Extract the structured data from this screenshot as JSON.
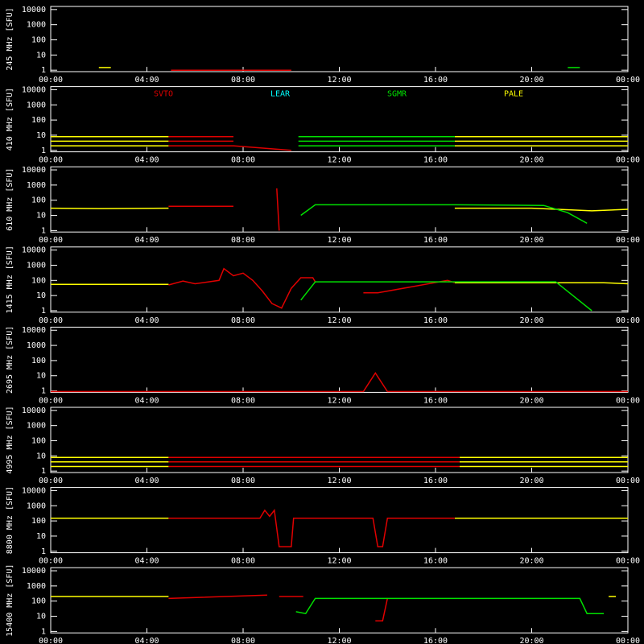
{
  "chart_data": [
    {
      "type": "line",
      "y_label": "245 MHz [SFU]",
      "xlim": [
        0,
        24
      ],
      "ylim": [
        0.8,
        16000
      ],
      "log_scale": true,
      "xticks": [
        {
          "value": 0,
          "label": "00:00"
        },
        {
          "value": 4,
          "label": "04:00"
        },
        {
          "value": 8,
          "label": "08:00"
        },
        {
          "value": 12,
          "label": "12:00"
        },
        {
          "value": 16,
          "label": "16:00"
        },
        {
          "value": 20,
          "label": "20:00"
        },
        {
          "value": 24,
          "label": "00:00"
        }
      ],
      "yticks": [
        1,
        10,
        100,
        1000,
        10000
      ],
      "series": [
        {
          "color": "#ffff00",
          "x": [
            2,
            2.5
          ],
          "values": [
            1.5,
            1.5
          ]
        },
        {
          "color": "#e00000",
          "x": [
            5,
            10
          ],
          "values": [
            1,
            1
          ]
        },
        {
          "color": "#00e000",
          "x": [
            21.5,
            22
          ],
          "values": [
            1.5,
            1.5
          ]
        }
      ]
    },
    {
      "type": "line",
      "y_label": "410 MHz [SFU]",
      "xlim": [
        0,
        24
      ],
      "ylim": [
        0.8,
        16000
      ],
      "log_scale": true,
      "xticks": [
        {
          "value": 0,
          "label": "00:00"
        },
        {
          "value": 4,
          "label": "04:00"
        },
        {
          "value": 8,
          "label": "08:00"
        },
        {
          "value": 12,
          "label": "12:00"
        },
        {
          "value": 16,
          "label": "16:00"
        },
        {
          "value": 20,
          "label": "20:00"
        },
        {
          "value": 24,
          "label": "00:00"
        }
      ],
      "yticks": [
        1,
        10,
        100,
        1000,
        10000
      ],
      "legend": [
        {
          "name": "SVTO",
          "color": "#e00000"
        },
        {
          "name": "LEAR",
          "color": "#00ffff"
        },
        {
          "name": "SGMR",
          "color": "#00e000"
        },
        {
          "name": "PALE",
          "color": "#ffff00"
        }
      ],
      "series": [
        {
          "color": "#ffff00",
          "x": [
            0,
            4.9,
            10,
            16.8,
            24
          ],
          "values": [
            8,
            8,
            null,
            8,
            8
          ]
        },
        {
          "color": "#ffff00",
          "x": [
            0,
            4.9,
            10,
            16.8,
            24
          ],
          "values": [
            4,
            4,
            null,
            4,
            4
          ]
        },
        {
          "color": "#ffff00",
          "x": [
            0,
            4.9,
            10,
            16.8,
            24
          ],
          "values": [
            2,
            2,
            null,
            2,
            2
          ]
        },
        {
          "color": "#e00000",
          "x": [
            4.9,
            7.6
          ],
          "values": [
            8,
            8
          ]
        },
        {
          "color": "#e00000",
          "x": [
            4.9,
            7.6
          ],
          "values": [
            4,
            4
          ]
        },
        {
          "color": "#e00000",
          "x": [
            4.9,
            7.6,
            10
          ],
          "values": [
            2,
            2,
            1
          ]
        },
        {
          "color": "#00e000",
          "x": [
            10.3,
            16.8
          ],
          "values": [
            8,
            8
          ]
        },
        {
          "color": "#00e000",
          "x": [
            10.3,
            16.8
          ],
          "values": [
            4,
            4
          ]
        },
        {
          "color": "#00e000",
          "x": [
            10.3,
            16.8
          ],
          "values": [
            2,
            2
          ]
        }
      ]
    },
    {
      "type": "line",
      "y_label": "610 MHz [SFU]",
      "xlim": [
        0,
        24
      ],
      "ylim": [
        0.8,
        16000
      ],
      "log_scale": true,
      "xticks": [
        {
          "value": 0,
          "label": "00:00"
        },
        {
          "value": 4,
          "label": "04:00"
        },
        {
          "value": 8,
          "label": "08:00"
        },
        {
          "value": 12,
          "label": "12:00"
        },
        {
          "value": 16,
          "label": "16:00"
        },
        {
          "value": 20,
          "label": "20:00"
        },
        {
          "value": 24,
          "label": "00:00"
        }
      ],
      "yticks": [
        1,
        10,
        100,
        1000,
        10000
      ],
      "series": [
        {
          "color": "#ffff00",
          "x": [
            0,
            2,
            4.9,
            10,
            16.8,
            20,
            22.5,
            24
          ],
          "values": [
            30,
            28,
            30,
            null,
            30,
            30,
            20,
            25
          ]
        },
        {
          "color": "#e00000",
          "x": [
            4.9,
            7.6,
            9.3,
            9.4,
            9.5
          ],
          "values": [
            40,
            40,
            null,
            600,
            1
          ]
        },
        {
          "color": "#00e000",
          "x": [
            10.4,
            11,
            16.8,
            20.5,
            21.5,
            22.3
          ],
          "values": [
            10,
            50,
            50,
            45,
            15,
            3
          ]
        }
      ]
    },
    {
      "type": "line",
      "y_label": "1415 MHz [SFU]",
      "xlim": [
        0,
        24
      ],
      "ylim": [
        0.8,
        16000
      ],
      "log_scale": true,
      "xticks": [
        {
          "value": 0,
          "label": "00:00"
        },
        {
          "value": 4,
          "label": "04:00"
        },
        {
          "value": 8,
          "label": "08:00"
        },
        {
          "value": 12,
          "label": "12:00"
        },
        {
          "value": 16,
          "label": "16:00"
        },
        {
          "value": 20,
          "label": "20:00"
        },
        {
          "value": 24,
          "label": "00:00"
        }
      ],
      "yticks": [
        1,
        10,
        100,
        1000,
        10000
      ],
      "series": [
        {
          "color": "#ffff00",
          "x": [
            0,
            4.9,
            10,
            16.8,
            23,
            24
          ],
          "values": [
            55,
            55,
            null,
            70,
            70,
            60
          ]
        },
        {
          "color": "#e00000",
          "x": [
            4.9,
            5.5,
            6,
            7,
            7.2,
            7.6,
            8,
            8.4,
            8.8,
            9.2,
            9.6,
            10,
            10.4,
            10.9,
            11,
            12.8,
            13,
            13.6,
            16.5,
            16.8
          ],
          "values": [
            50,
            90,
            60,
            100,
            600,
            200,
            300,
            100,
            20,
            3,
            1.5,
            30,
            150,
            150,
            80,
            null,
            15,
            15,
            100,
            70
          ]
        },
        {
          "color": "#00e000",
          "x": [
            10.4,
            11,
            21,
            22.5
          ],
          "values": [
            5,
            80,
            80,
            1
          ]
        }
      ]
    },
    {
      "type": "line",
      "y_label": "2695 MHz [SFU]",
      "xlim": [
        0,
        24
      ],
      "ylim": [
        0.8,
        16000
      ],
      "log_scale": true,
      "xticks": [
        {
          "value": 0,
          "label": "00:00"
        },
        {
          "value": 4,
          "label": "04:00"
        },
        {
          "value": 8,
          "label": "08:00"
        },
        {
          "value": 12,
          "label": "12:00"
        },
        {
          "value": 16,
          "label": "16:00"
        },
        {
          "value": 20,
          "label": "20:00"
        },
        {
          "value": 24,
          "label": "00:00"
        }
      ],
      "yticks": [
        1,
        10,
        100,
        1000,
        10000
      ],
      "series": [
        {
          "color": "#e00000",
          "x": [
            0,
            13,
            13.5,
            14,
            24
          ],
          "values": [
            0.9,
            0.9,
            15,
            0.9,
            0.9
          ]
        }
      ]
    },
    {
      "type": "line",
      "y_label": "4995 MHz [SFU]",
      "xlim": [
        0,
        24
      ],
      "ylim": [
        0.8,
        16000
      ],
      "log_scale": true,
      "xticks": [
        {
          "value": 0,
          "label": "00:00"
        },
        {
          "value": 4,
          "label": "04:00"
        },
        {
          "value": 8,
          "label": "08:00"
        },
        {
          "value": 12,
          "label": "12:00"
        },
        {
          "value": 16,
          "label": "16:00"
        },
        {
          "value": 20,
          "label": "20:00"
        },
        {
          "value": 24,
          "label": "00:00"
        }
      ],
      "yticks": [
        1,
        10,
        100,
        1000,
        10000
      ],
      "series": [
        {
          "color": "#ffff00",
          "x": [
            0,
            4.9,
            10,
            17,
            24
          ],
          "values": [
            8,
            8,
            null,
            8,
            8
          ]
        },
        {
          "color": "#ffff00",
          "x": [
            0,
            4.9,
            10,
            17,
            24
          ],
          "values": [
            4,
            4,
            null,
            4,
            4
          ]
        },
        {
          "color": "#ffff00",
          "x": [
            0,
            4.9,
            10,
            17,
            24
          ],
          "values": [
            2,
            2,
            null,
            2,
            2
          ]
        },
        {
          "color": "#e00000",
          "x": [
            4.9,
            17
          ],
          "values": [
            8,
            8
          ]
        },
        {
          "color": "#e00000",
          "x": [
            4.9,
            17
          ],
          "values": [
            4,
            4
          ]
        },
        {
          "color": "#e00000",
          "x": [
            4.9,
            17
          ],
          "values": [
            2,
            2
          ]
        }
      ]
    },
    {
      "type": "line",
      "y_label": "8800 MHz [SFU]",
      "xlim": [
        0,
        24
      ],
      "ylim": [
        0.8,
        16000
      ],
      "log_scale": true,
      "xticks": [
        {
          "value": 0,
          "label": "00:00"
        },
        {
          "value": 4,
          "label": "04:00"
        },
        {
          "value": 8,
          "label": "08:00"
        },
        {
          "value": 12,
          "label": "12:00"
        },
        {
          "value": 16,
          "label": "16:00"
        },
        {
          "value": 20,
          "label": "20:00"
        },
        {
          "value": 24,
          "label": "00:00"
        }
      ],
      "yticks": [
        1,
        10,
        100,
        1000,
        10000
      ],
      "series": [
        {
          "color": "#ffff00",
          "x": [
            0,
            4.9,
            10,
            16.8,
            24
          ],
          "values": [
            150,
            150,
            null,
            150,
            150
          ]
        },
        {
          "color": "#e00000",
          "x": [
            4.9,
            8.7,
            8.9,
            9.1,
            9.3,
            9.5,
            10,
            10.1,
            13.4,
            13.6,
            13.8,
            14,
            16.8
          ],
          "values": [
            150,
            150,
            500,
            200,
            500,
            2,
            2,
            150,
            150,
            2,
            2,
            150,
            150
          ]
        }
      ]
    },
    {
      "type": "line",
      "y_label": "15400 MHz [SFU]",
      "xlim": [
        0,
        24
      ],
      "ylim": [
        0.8,
        16000
      ],
      "log_scale": true,
      "xticks": [
        {
          "value": 0,
          "label": "00:00"
        },
        {
          "value": 4,
          "label": "04:00"
        },
        {
          "value": 8,
          "label": "08:00"
        },
        {
          "value": 12,
          "label": "12:00"
        },
        {
          "value": 16,
          "label": "16:00"
        },
        {
          "value": 20,
          "label": "20:00"
        },
        {
          "value": 24,
          "label": "00:00"
        }
      ],
      "yticks": [
        1,
        10,
        100,
        1000,
        10000
      ],
      "series": [
        {
          "color": "#ffff00",
          "x": [
            0,
            4.9,
            10,
            23.2,
            23.5
          ],
          "values": [
            200,
            200,
            null,
            200,
            200
          ]
        },
        {
          "color": "#e00000",
          "x": [
            4.9,
            9,
            9.2,
            9.5,
            10.5,
            13.4,
            13.5,
            13.8,
            14
          ],
          "values": [
            150,
            250,
            null,
            200,
            200,
            null,
            5,
            5,
            150
          ]
        },
        {
          "color": "#00e000",
          "x": [
            10.2,
            10.6,
            11,
            22,
            22.3,
            23
          ],
          "values": [
            20,
            15,
            150,
            150,
            15,
            15
          ]
        }
      ]
    }
  ]
}
